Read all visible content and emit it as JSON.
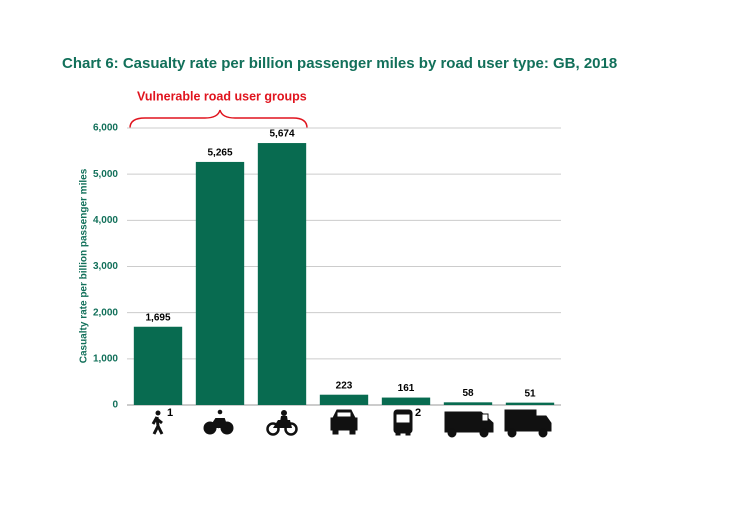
{
  "chart_data": {
    "type": "bar",
    "title": "Chart 6:  Casualty rate per billion passenger miles by road user type: GB, 2018",
    "annotation": "Vulnerable road user groups",
    "y_label": "Casualty rate per billion passenger miles",
    "categories": [
      "1",
      null,
      null,
      null,
      "2",
      null,
      null
    ],
    "values": [
      1695,
      5265,
      5674,
      223,
      161,
      58,
      51
    ],
    "value_labels": [
      "1,695",
      "5,265",
      "5,674",
      "223",
      "161",
      "58",
      "51"
    ],
    "color": "#086b50",
    "ylim": [
      0,
      6000
    ],
    "yticks": [
      0,
      {
        "value": 1000,
        "label": "1,000"
      },
      {
        "value": 2000,
        "label": "2,000"
      },
      {
        "value": 3000,
        "label": "3,000"
      },
      {
        "value": 4000,
        "label": "4,000"
      },
      {
        "value": 5000,
        "label": "5,000"
      },
      {
        "value": 6000,
        "label": "6,000"
      }
    ],
    "grid": true
  }
}
